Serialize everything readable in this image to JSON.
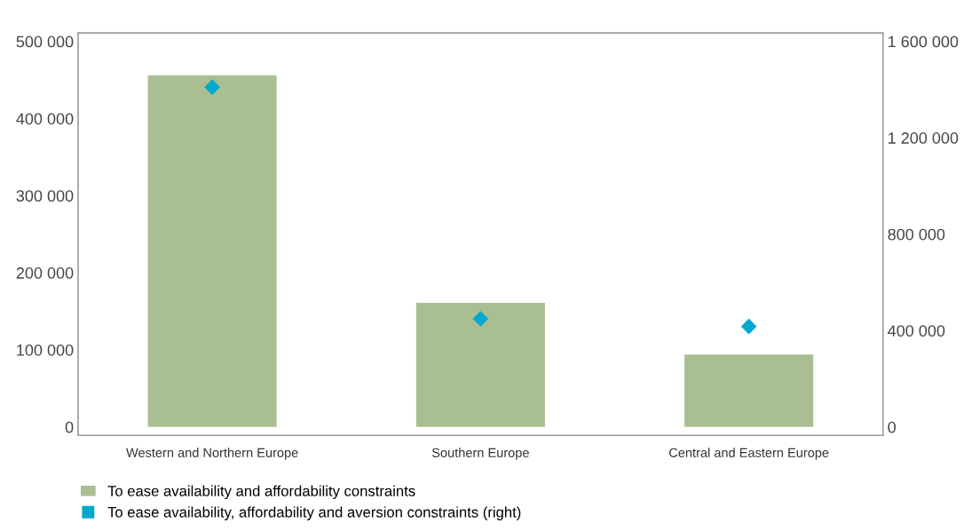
{
  "chart_data": {
    "type": "bar",
    "categories": [
      "Western and Northern Europe",
      "Southern Europe",
      "Central and Eastern Europe"
    ],
    "series": [
      {
        "name": "To ease availability and affordability constraints",
        "color": "#a9bf91",
        "values": [
          456000,
          161000,
          94000
        ]
      },
      {
        "name": "To ease availability, affordability and aversion constraints (right)",
        "color": "#00a9ce",
        "type": "scatter",
        "axis": "y2",
        "marker": "diamond",
        "values": [
          1410000,
          449000,
          417000
        ]
      }
    ],
    "ylim": [
      -11000,
      511000
    ],
    "yticks": [
      {
        "value": 0,
        "label": "0"
      },
      {
        "value": 100000,
        "label": "100 000"
      },
      {
        "value": 200000,
        "label": "200 000"
      },
      {
        "value": 300000,
        "label": "300 000"
      },
      {
        "value": 400000,
        "label": "400 000"
      },
      {
        "value": 500000,
        "label": "500 000"
      }
    ],
    "y2lim": [
      -35000,
      1635000
    ],
    "y2ticks": [
      {
        "value": 0,
        "label": "0"
      },
      {
        "value": 400000,
        "label": "400 000"
      },
      {
        "value": 800000,
        "label": "800 000"
      },
      {
        "value": 1200000,
        "label": "1 200 000"
      },
      {
        "value": 1600000,
        "label": "1 600 000"
      }
    ],
    "grid": false,
    "legend": "bottom left"
  }
}
